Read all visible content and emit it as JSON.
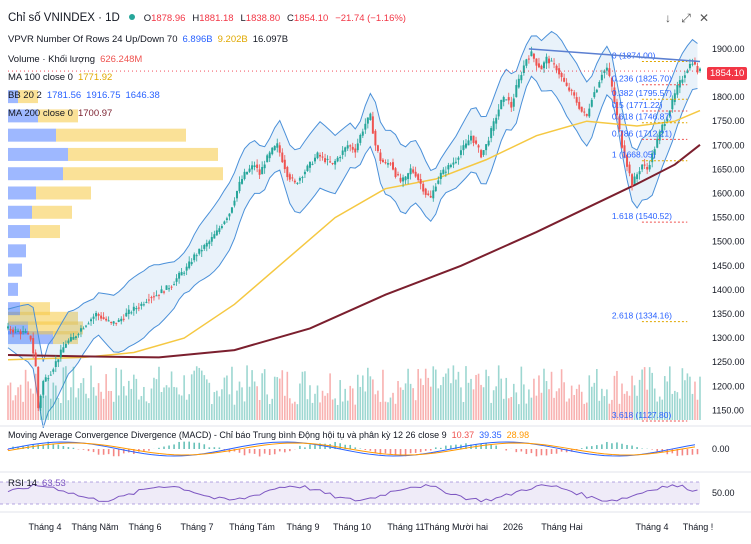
{
  "header": {
    "symbol": "Chỉ số VNINDEX · 1D",
    "o_label": "O",
    "o_value": "1878.96",
    "h_label": "H",
    "h_value": "1881.18",
    "l_label": "L",
    "l_value": "1838.80",
    "c_label": "C",
    "c_value": "1854.10",
    "change": "−21.74 (−1.16%)"
  },
  "legends": {
    "vpvr": {
      "name": "VPVR Number Of Rows 24 Up/Down 70",
      "v1": "6.896B",
      "v2": "9.202B",
      "v3": "16.097B"
    },
    "volume": {
      "name": "Volume · Khối lượng",
      "value": "626.248M"
    },
    "ma100": {
      "name": "MA 100 close 0",
      "value": "1771.92"
    },
    "bb": {
      "name": "BB 20 2",
      "v1": "1781.56",
      "v2": "1916.75",
      "v3": "1646.38"
    },
    "ma200": {
      "name": "MA 200 close 0",
      "value": "1700.97"
    },
    "macd": {
      "name": "Moving Average Convergence Divergence (MACD) - Chỉ báo Trung bình Động hội tụ và phân kỳ 12 26 close 9",
      "v1": "10.37",
      "v2": "39.35",
      "v3": "28.98"
    },
    "rsi": {
      "name": "RSI 14",
      "value": "63.53"
    }
  },
  "colors": {
    "up": "#26a69a",
    "down": "#ef5350",
    "ma100": "#f5c842",
    "ma200": "#7b1f2e",
    "bb_band": "#4a90d9",
    "bb_fill": "rgba(100,160,220,0.14)",
    "fib": "#2962ff",
    "price_tag": "#f23645",
    "rsi": "#7e57c2",
    "macd": "#2962ff",
    "signal": "#ff9800"
  },
  "chart_data": [
    {
      "type": "candlestick",
      "title": "Chỉ số VNINDEX · 1D",
      "x_tick_labels": [
        "Tháng 4",
        "Tháng Năm",
        "Tháng 6",
        "Tháng 7",
        "Tháng Tám",
        "Tháng 9",
        "Tháng 10",
        "Tháng 11",
        "Tháng Mười hai",
        "2026",
        "Tháng Hai",
        "Tháng 4",
        "Tháng !"
      ],
      "y_tick_labels": [
        "1900.00",
        "1850.00",
        "1800.00",
        "1750.00",
        "1700.00",
        "1650.00",
        "1600.00",
        "1550.00",
        "1500.00",
        "1450.00",
        "1400.00",
        "1350.00",
        "1300.00",
        "1250.00",
        "1200.00",
        "1150.00"
      ],
      "ylim": [
        1130,
        1960
      ],
      "last_price": "1854.10",
      "close_path": [
        [
          0,
          1320
        ],
        [
          4,
          1315
        ],
        [
          8,
          1310
        ],
        [
          10,
          1300
        ],
        [
          12,
          1240
        ],
        [
          13,
          1155
        ],
        [
          15,
          1210
        ],
        [
          18,
          1230
        ],
        [
          21,
          1260
        ],
        [
          24,
          1290
        ],
        [
          27,
          1300
        ],
        [
          30,
          1320
        ],
        [
          33,
          1335
        ],
        [
          36,
          1350
        ],
        [
          39,
          1340
        ],
        [
          42,
          1330
        ],
        [
          45,
          1335
        ],
        [
          48,
          1350
        ],
        [
          51,
          1360
        ],
        [
          54,
          1370
        ],
        [
          57,
          1385
        ],
        [
          60,
          1390
        ],
        [
          63,
          1400
        ],
        [
          66,
          1410
        ],
        [
          69,
          1430
        ],
        [
          72,
          1445
        ],
        [
          75,
          1470
        ],
        [
          78,
          1485
        ],
        [
          81,
          1500
        ],
        [
          84,
          1520
        ],
        [
          87,
          1545
        ],
        [
          89,
          1560
        ],
        [
          91,
          1590
        ],
        [
          93,
          1620
        ],
        [
          95,
          1640
        ],
        [
          97,
          1650
        ],
        [
          99,
          1660
        ],
        [
          101,
          1640
        ],
        [
          103,
          1665
        ],
        [
          106,
          1690
        ],
        [
          108,
          1700
        ],
        [
          110,
          1670
        ],
        [
          112,
          1640
        ],
        [
          115,
          1620
        ],
        [
          118,
          1640
        ],
        [
          121,
          1660
        ],
        [
          124,
          1680
        ],
        [
          127,
          1670
        ],
        [
          130,
          1660
        ],
        [
          133,
          1680
        ],
        [
          136,
          1700
        ],
        [
          139,
          1690
        ],
        [
          141,
          1720
        ],
        [
          143,
          1745
        ],
        [
          145,
          1760
        ],
        [
          147,
          1700
        ],
        [
          149,
          1670
        ],
        [
          151,
          1660
        ],
        [
          153,
          1665
        ],
        [
          155,
          1640
        ],
        [
          157,
          1625
        ],
        [
          159,
          1630
        ],
        [
          161,
          1650
        ],
        [
          163,
          1640
        ],
        [
          165,
          1620
        ],
        [
          167,
          1600
        ],
        [
          169,
          1590
        ],
        [
          171,
          1620
        ],
        [
          173,
          1640
        ],
        [
          175,
          1650
        ],
        [
          177,
          1660
        ],
        [
          179,
          1670
        ],
        [
          181,
          1690
        ],
        [
          183,
          1700
        ],
        [
          185,
          1720
        ],
        [
          187,
          1700
        ],
        [
          189,
          1680
        ],
        [
          191,
          1700
        ],
        [
          193,
          1730
        ],
        [
          195,
          1760
        ],
        [
          197,
          1790
        ],
        [
          199,
          1800
        ],
        [
          201,
          1780
        ],
        [
          203,
          1820
        ],
        [
          205,
          1850
        ],
        [
          207,
          1880
        ],
        [
          209,
          1890
        ],
        [
          211,
          1870
        ],
        [
          213,
          1860
        ],
        [
          215,
          1880
        ],
        [
          217,
          1870
        ],
        [
          219,
          1860
        ],
        [
          221,
          1840
        ],
        [
          223,
          1820
        ],
        [
          225,
          1810
        ],
        [
          227,
          1790
        ],
        [
          229,
          1770
        ],
        [
          231,
          1760
        ],
        [
          233,
          1800
        ],
        [
          235,
          1820
        ],
        [
          237,
          1850
        ],
        [
          239,
          1860
        ],
        [
          241,
          1820
        ],
        [
          243,
          1760
        ],
        [
          245,
          1700
        ],
        [
          247,
          1660
        ],
        [
          249,
          1620
        ],
        [
          251,
          1640
        ],
        [
          253,
          1660
        ],
        [
          255,
          1650
        ],
        [
          257,
          1680
        ],
        [
          259,
          1710
        ],
        [
          261,
          1740
        ],
        [
          263,
          1760
        ],
        [
          265,
          1790
        ],
        [
          267,
          1820
        ],
        [
          269,
          1840
        ],
        [
          271,
          1860
        ],
        [
          273,
          1875
        ],
        [
          275,
          1854
        ]
      ],
      "ma100_path": [
        [
          0,
          1255
        ],
        [
          30,
          1260
        ],
        [
          50,
          1270
        ],
        [
          70,
          1300
        ],
        [
          90,
          1370
        ],
        [
          110,
          1460
        ],
        [
          130,
          1550
        ],
        [
          150,
          1610
        ],
        [
          170,
          1630
        ],
        [
          190,
          1670
        ],
        [
          210,
          1720
        ],
        [
          230,
          1750
        ],
        [
          250,
          1740
        ],
        [
          265,
          1750
        ],
        [
          275,
          1772
        ]
      ],
      "ma200_path": [
        [
          0,
          1265
        ],
        [
          30,
          1262
        ],
        [
          60,
          1260
        ],
        [
          90,
          1275
        ],
        [
          120,
          1320
        ],
        [
          150,
          1390
        ],
        [
          180,
          1450
        ],
        [
          210,
          1520
        ],
        [
          230,
          1570
        ],
        [
          250,
          1620
        ],
        [
          265,
          1660
        ],
        [
          275,
          1701
        ]
      ],
      "fibonacci": [
        {
          "level": "0",
          "value": 1874.0,
          "label": "0 (1874.00)"
        },
        {
          "level": "0.236",
          "value": 1825.7,
          "label": "0.236 (1825.70)"
        },
        {
          "level": "0.382",
          "value": 1795.57,
          "label": "0.382 (1795.57)"
        },
        {
          "level": "0.5",
          "value": 1771.22,
          "label": "0.5 (1771.22)"
        },
        {
          "level": "0.618",
          "value": 1746.87,
          "label": "0.618 (1746.87)"
        },
        {
          "level": "0.786",
          "value": 1712.21,
          "label": "0.786 (1712.21)"
        },
        {
          "level": "1",
          "value": 1668.05,
          "label": "1 (1668.05)"
        },
        {
          "level": "1.618",
          "value": 1540.52,
          "label": "1.618 (1540.52)"
        },
        {
          "level": "2.618",
          "value": 1334.16,
          "label": "2.618 (1334.16)"
        },
        {
          "level": "3.618",
          "value": 1127.8,
          "label": "3.618 (1127.80)"
        }
      ],
      "legend": "top-left",
      "grid": false
    },
    {
      "type": "line",
      "title": "Moving Average Convergence Divergence (MACD) - Chỉ báo Trung bình Động hội tụ và phân kỳ 12 26 close 9",
      "y_tick_labels": [
        "0.00"
      ],
      "values": {
        "histogram": "10.37",
        "macd": "39.35",
        "signal": "28.98"
      }
    },
    {
      "type": "line",
      "title": "RSI 14",
      "y_tick_labels": [
        "50.00"
      ],
      "value": "63.53"
    }
  ]
}
